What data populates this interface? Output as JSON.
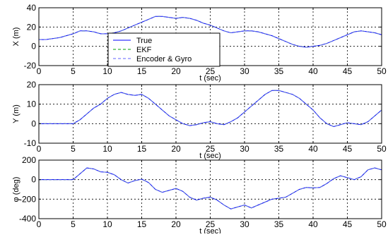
{
  "chart_data": [
    {
      "type": "line",
      "xlabel": "t (sec)",
      "ylabel": "X (m)",
      "xlim": [
        0,
        50
      ],
      "ylim": [
        -20,
        40
      ],
      "xticks": [
        0,
        5,
        10,
        15,
        20,
        25,
        30,
        35,
        40,
        45,
        50
      ],
      "yticks": [
        -20,
        0,
        20,
        40
      ],
      "grid": true,
      "legend": {
        "position": "lower-left",
        "entries": [
          "True",
          "EKF",
          "Encoder & Gyro"
        ]
      },
      "x": [
        0,
        1,
        2,
        3,
        4,
        5,
        6,
        7,
        8,
        9,
        10,
        11,
        12,
        13,
        14,
        15,
        16,
        17,
        18,
        19,
        20,
        21,
        22,
        23,
        24,
        25,
        26,
        27,
        28,
        29,
        30,
        31,
        32,
        33,
        34,
        35,
        36,
        37,
        38,
        39,
        40,
        41,
        42,
        43,
        44,
        45,
        46,
        47,
        48,
        49,
        50
      ],
      "series": [
        {
          "name": "True",
          "color": "#0000ff",
          "style": "solid",
          "values": [
            7,
            7,
            8,
            9,
            11,
            13,
            16,
            16,
            15,
            13,
            13,
            14,
            16,
            19,
            22,
            25,
            28,
            31,
            31,
            30,
            29,
            30,
            29,
            27,
            24,
            22,
            19,
            16,
            14,
            15,
            16,
            16,
            15,
            13,
            11,
            8,
            5,
            2,
            0,
            -1,
            0,
            1,
            3,
            6,
            9,
            12,
            15,
            16,
            15,
            14,
            12
          ]
        },
        {
          "name": "EKF",
          "color": "#00a000",
          "style": "dashed",
          "values": [
            7,
            7,
            8,
            9,
            11,
            13,
            16,
            16,
            15,
            13,
            13,
            14,
            16,
            19,
            22,
            25,
            28,
            31,
            31,
            30,
            29,
            30,
            29,
            27,
            24,
            22,
            19,
            16,
            14,
            15,
            16,
            16,
            15,
            13,
            11,
            8,
            5,
            2,
            0,
            -1,
            0,
            1,
            3,
            6,
            9,
            12,
            15,
            16,
            15,
            14,
            12
          ]
        },
        {
          "name": "Encoder & Gyro",
          "color": "#6060ff",
          "style": "dashed",
          "values": [
            7,
            7,
            8,
            9,
            11,
            13,
            16,
            16,
            15,
            13,
            13,
            14,
            16,
            19,
            22,
            25,
            28,
            31,
            31,
            30,
            29,
            30,
            29,
            27,
            24,
            22,
            19,
            16,
            14,
            15,
            16,
            16,
            15,
            13,
            11,
            8,
            5,
            2,
            0,
            -1,
            0,
            1,
            3,
            6,
            9,
            12,
            15,
            16,
            15,
            14,
            12
          ]
        }
      ]
    },
    {
      "type": "line",
      "xlabel": "t (sec)",
      "ylabel": "Y (m)",
      "xlim": [
        0,
        50
      ],
      "ylim": [
        -10,
        20
      ],
      "xticks": [
        0,
        5,
        10,
        15,
        20,
        25,
        30,
        35,
        40,
        45,
        50
      ],
      "yticks": [
        -10,
        0,
        10,
        20
      ],
      "grid": true,
      "x": [
        0,
        1,
        2,
        3,
        4,
        5,
        6,
        7,
        8,
        9,
        10,
        11,
        12,
        13,
        14,
        15,
        16,
        17,
        18,
        19,
        20,
        21,
        22,
        23,
        24,
        25,
        26,
        27,
        28,
        29,
        30,
        31,
        32,
        33,
        34,
        35,
        36,
        37,
        38,
        39,
        40,
        41,
        42,
        43,
        44,
        45,
        46,
        47,
        48,
        49,
        50
      ],
      "series": [
        {
          "name": "True",
          "color": "#0000ff",
          "style": "solid",
          "values": [
            0,
            0,
            0,
            0,
            0,
            0,
            2,
            5,
            8,
            10,
            13,
            15,
            16,
            15,
            14.5,
            15,
            13,
            10,
            7,
            4,
            2,
            0,
            -1,
            -0.5,
            0.5,
            1,
            0,
            -0.5,
            1,
            3,
            6,
            9,
            12,
            15,
            17,
            17,
            16,
            15,
            13,
            10,
            7,
            3,
            0,
            -1.5,
            -0.5,
            0.5,
            0,
            -0.5,
            1,
            4,
            7
          ]
        },
        {
          "name": "EKF",
          "color": "#00a000",
          "style": "dashed",
          "values": [
            0,
            0,
            0,
            0,
            0,
            0,
            2,
            5,
            8,
            10,
            13,
            15,
            16,
            15,
            14.5,
            15,
            13,
            10,
            7,
            4,
            2,
            0,
            -1,
            -0.5,
            0.5,
            1,
            0,
            -0.5,
            1,
            3,
            6,
            9,
            12,
            15,
            17,
            17,
            16,
            15,
            13,
            10,
            7,
            3,
            0,
            -1.5,
            -0.5,
            0.5,
            0,
            -0.5,
            1,
            4,
            7
          ]
        },
        {
          "name": "Encoder & Gyro",
          "color": "#6060ff",
          "style": "dashed",
          "values": [
            0,
            0,
            0,
            0,
            0,
            0,
            2,
            5,
            8,
            10,
            13,
            15,
            16,
            15,
            14.5,
            15,
            13,
            10,
            7,
            4,
            2,
            0,
            -1,
            -0.5,
            0.5,
            1,
            0,
            -0.5,
            1,
            3,
            6,
            9,
            12,
            15,
            17,
            17,
            16,
            15,
            13,
            10,
            7,
            3,
            0,
            -1.5,
            -0.5,
            0.5,
            0,
            -0.5,
            1,
            4,
            7
          ]
        }
      ]
    },
    {
      "type": "line",
      "xlabel": "t (sec)",
      "ylabel": "φ (deg)",
      "xlim": [
        0,
        50
      ],
      "ylim": [
        -400,
        200
      ],
      "xticks": [
        0,
        5,
        10,
        15,
        20,
        25,
        30,
        35,
        40,
        45,
        50
      ],
      "yticks": [
        -400,
        -200,
        0,
        200
      ],
      "grid": true,
      "x": [
        0,
        1,
        2,
        3,
        4,
        5,
        6,
        7,
        8,
        9,
        10,
        11,
        12,
        13,
        14,
        15,
        16,
        17,
        18,
        19,
        20,
        21,
        22,
        23,
        24,
        25,
        26,
        27,
        28,
        29,
        30,
        31,
        32,
        33,
        34,
        35,
        36,
        37,
        38,
        39,
        40,
        41,
        42,
        43,
        44,
        45,
        46,
        47,
        48,
        49,
        50
      ],
      "series": [
        {
          "name": "True",
          "color": "#0000ff",
          "style": "solid",
          "values": [
            0,
            0,
            0,
            0,
            0,
            0,
            60,
            120,
            110,
            80,
            75,
            50,
            0,
            -35,
            -10,
            5,
            -30,
            -100,
            -130,
            -110,
            -90,
            -120,
            -180,
            -210,
            -190,
            -180,
            -210,
            -260,
            -300,
            -280,
            -260,
            -290,
            -260,
            -230,
            -200,
            -190,
            -180,
            -140,
            -100,
            -80,
            -85,
            -80,
            -40,
            10,
            40,
            20,
            0,
            30,
            100,
            120,
            100
          ]
        },
        {
          "name": "EKF",
          "color": "#00a000",
          "style": "dashed",
          "values": [
            0,
            0,
            0,
            0,
            0,
            0,
            60,
            120,
            110,
            80,
            75,
            50,
            0,
            -35,
            -10,
            5,
            -30,
            -100,
            -130,
            -110,
            -90,
            -120,
            -180,
            -210,
            -190,
            -180,
            -210,
            -260,
            -300,
            -280,
            -260,
            -290,
            -260,
            -230,
            -200,
            -190,
            -180,
            -140,
            -100,
            -80,
            -85,
            -80,
            -40,
            10,
            40,
            20,
            0,
            30,
            100,
            120,
            100
          ]
        },
        {
          "name": "Encoder & Gyro",
          "color": "#6060ff",
          "style": "dashed",
          "values": [
            0,
            0,
            0,
            0,
            0,
            0,
            60,
            120,
            110,
            80,
            75,
            50,
            0,
            -35,
            -10,
            5,
            -30,
            -100,
            -130,
            -110,
            -90,
            -120,
            -180,
            -210,
            -190,
            -180,
            -210,
            -260,
            -300,
            -280,
            -260,
            -290,
            -260,
            -230,
            -200,
            -190,
            -180,
            -140,
            -100,
            -80,
            -85,
            -80,
            -40,
            10,
            40,
            20,
            0,
            30,
            100,
            120,
            100
          ]
        }
      ]
    }
  ]
}
